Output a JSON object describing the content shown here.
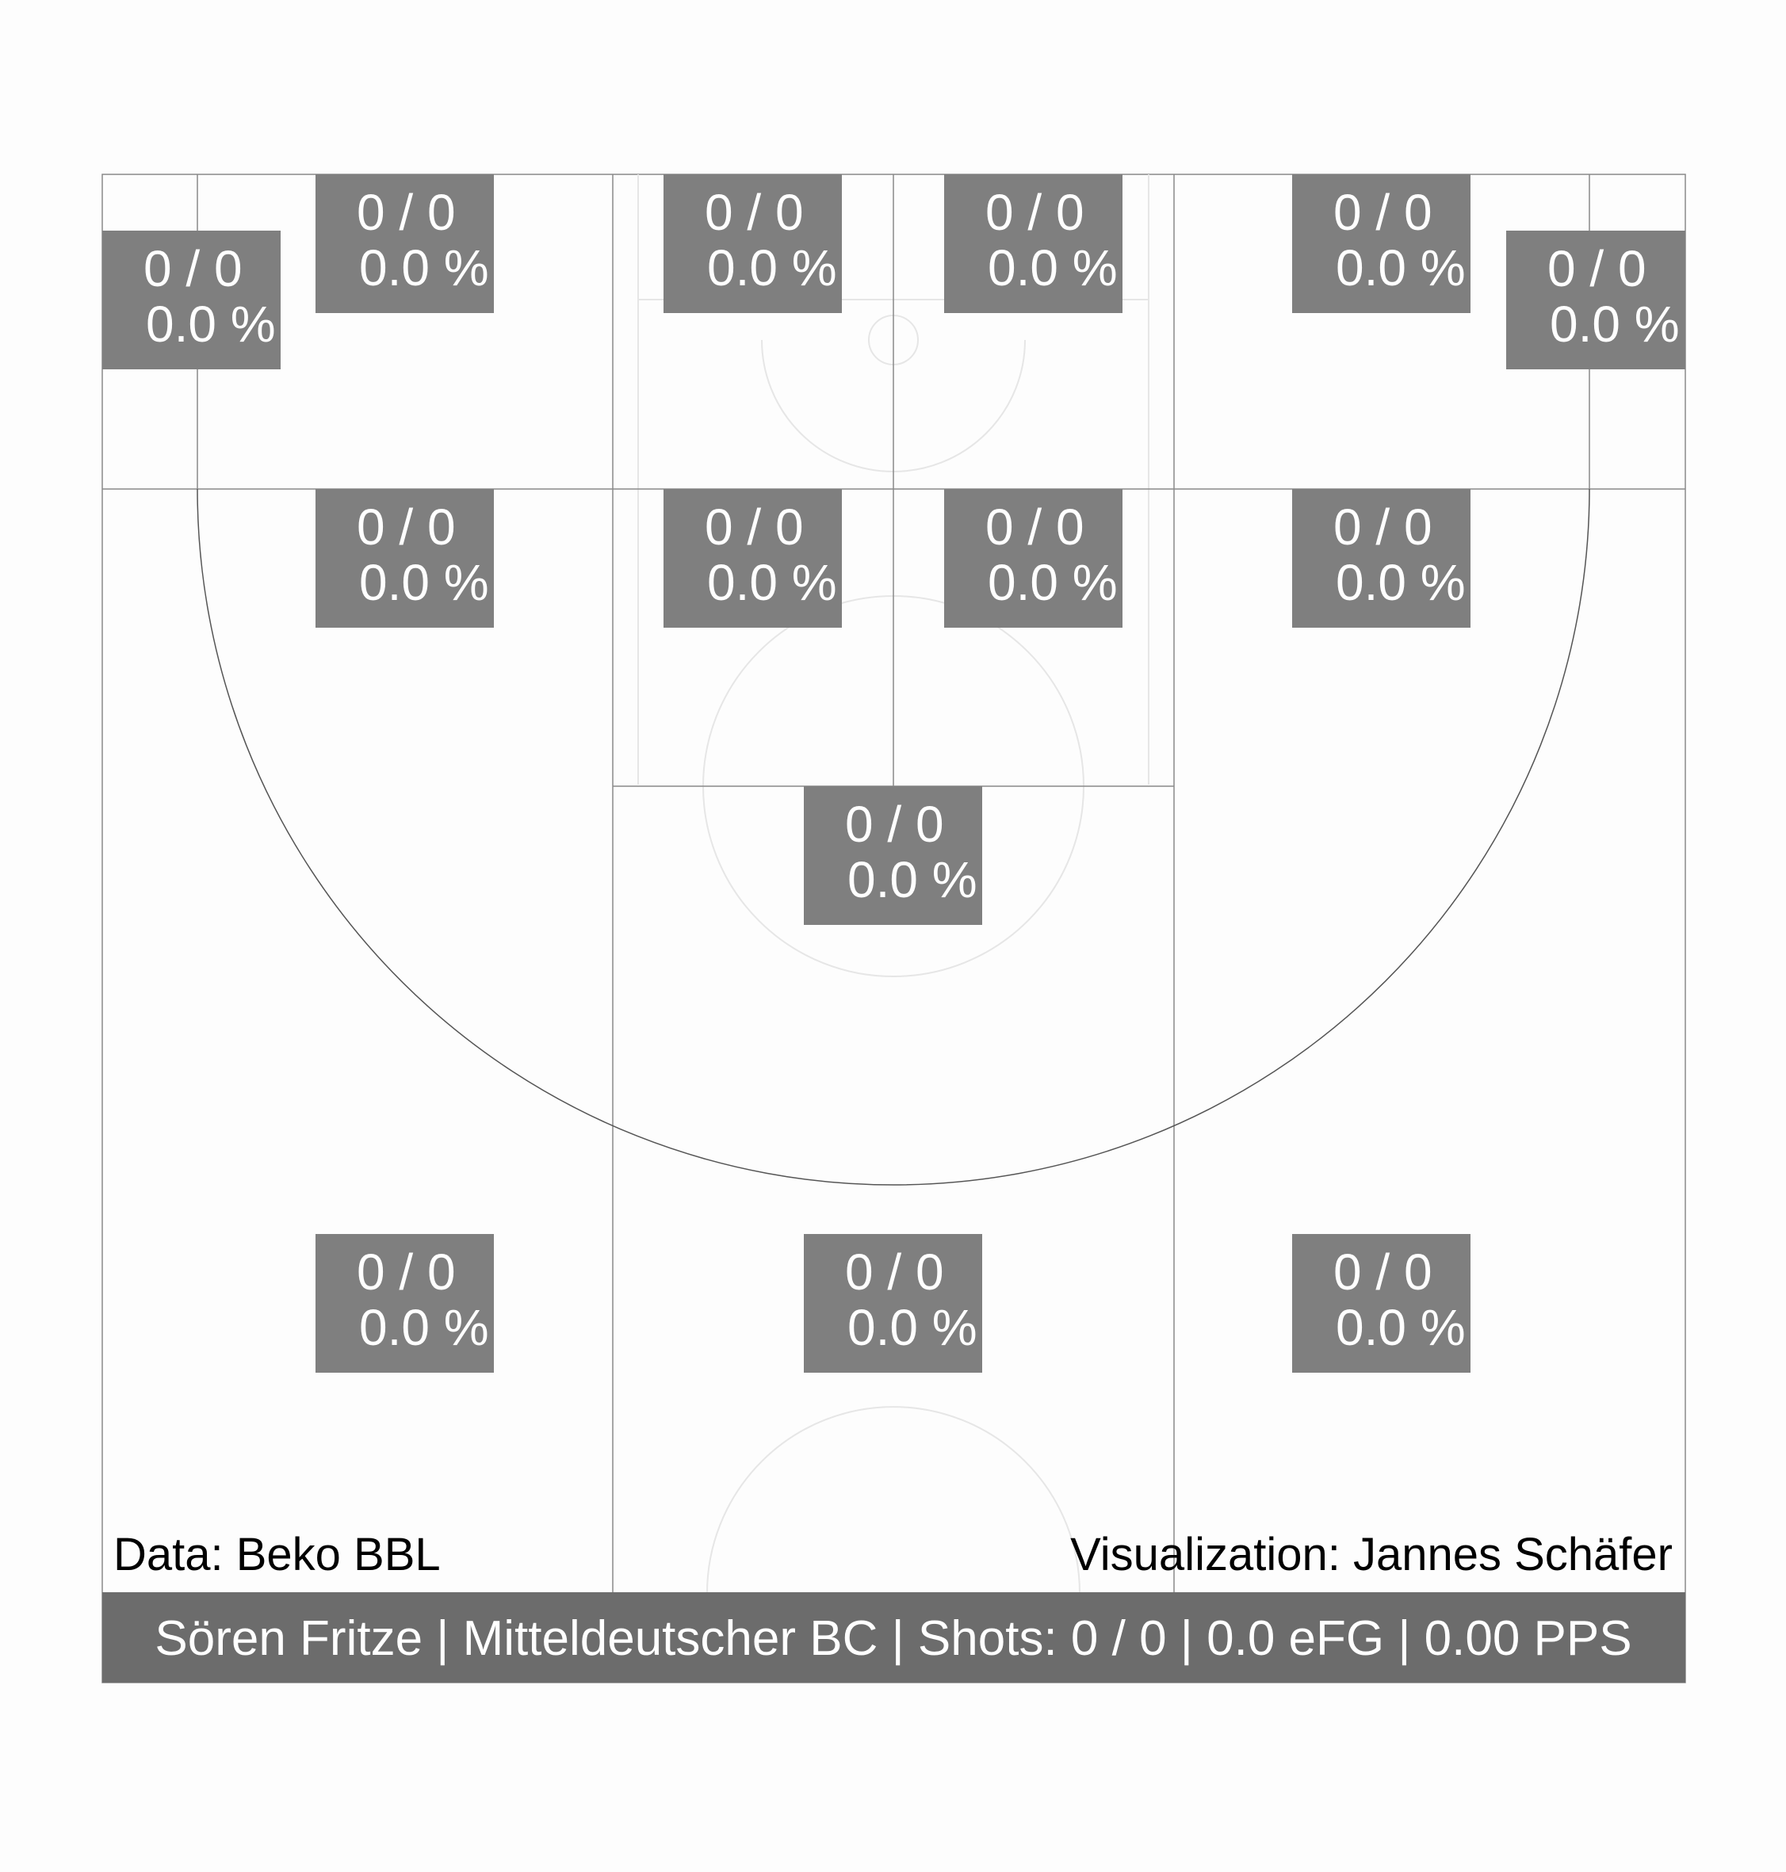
{
  "chart_data": {
    "type": "heatmap",
    "title": "",
    "colors": {
      "zone_fill": "#7f7f7f",
      "footer_fill": "#6c6c6c",
      "text": "#ffffff"
    },
    "zones": [
      {
        "id": "left-corner-three",
        "made_att": "0 / 0",
        "pct": "0.0 %",
        "made": 0,
        "attempts": 0,
        "pct_value": 0.0
      },
      {
        "id": "left-baseline-mid",
        "made_att": "0 / 0",
        "pct": "0.0 %",
        "made": 0,
        "attempts": 0,
        "pct_value": 0.0
      },
      {
        "id": "paint-left-low",
        "made_att": "0 / 0",
        "pct": "0.0 %",
        "made": 0,
        "attempts": 0,
        "pct_value": 0.0
      },
      {
        "id": "paint-right-low",
        "made_att": "0 / 0",
        "pct": "0.0 %",
        "made": 0,
        "attempts": 0,
        "pct_value": 0.0
      },
      {
        "id": "right-baseline-mid",
        "made_att": "0 / 0",
        "pct": "0.0 %",
        "made": 0,
        "attempts": 0,
        "pct_value": 0.0
      },
      {
        "id": "right-corner-three",
        "made_att": "0 / 0",
        "pct": "0.0 %",
        "made": 0,
        "attempts": 0,
        "pct_value": 0.0
      },
      {
        "id": "left-wing-mid",
        "made_att": "0 / 0",
        "pct": "0.0 %",
        "made": 0,
        "attempts": 0,
        "pct_value": 0.0
      },
      {
        "id": "paint-left-high",
        "made_att": "0 / 0",
        "pct": "0.0 %",
        "made": 0,
        "attempts": 0,
        "pct_value": 0.0
      },
      {
        "id": "paint-right-high",
        "made_att": "0 / 0",
        "pct": "0.0 %",
        "made": 0,
        "attempts": 0,
        "pct_value": 0.0
      },
      {
        "id": "right-wing-mid",
        "made_att": "0 / 0",
        "pct": "0.0 %",
        "made": 0,
        "attempts": 0,
        "pct_value": 0.0
      },
      {
        "id": "top-key-mid",
        "made_att": "0 / 0",
        "pct": "0.0 %",
        "made": 0,
        "attempts": 0,
        "pct_value": 0.0
      },
      {
        "id": "left-wing-three",
        "made_att": "0 / 0",
        "pct": "0.0 %",
        "made": 0,
        "attempts": 0,
        "pct_value": 0.0
      },
      {
        "id": "top-three",
        "made_att": "0 / 0",
        "pct": "0.0 %",
        "made": 0,
        "attempts": 0,
        "pct_value": 0.0
      },
      {
        "id": "right-wing-three",
        "made_att": "0 / 0",
        "pct": "0.0 %",
        "made": 0,
        "attempts": 0,
        "pct_value": 0.0
      }
    ],
    "credits": {
      "data": "Data: Beko BBL",
      "visualization": "Visualization: Jannes Schäfer"
    },
    "footer": "Sören Fritze | Mitteldeutscher BC | Shots: 0 / 0 | 0.0 eFG | 0.00 PPS"
  }
}
